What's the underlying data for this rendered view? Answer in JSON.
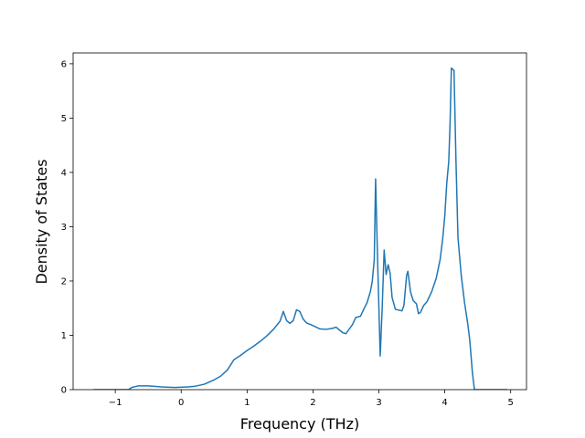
{
  "chart_data": {
    "type": "line",
    "xlabel": "Frequency (THz)",
    "ylabel": "Density of States",
    "xlim": [
      -1.64,
      5.24
    ],
    "ylim": [
      0,
      6.2
    ],
    "xticks": [
      {
        "value": -1,
        "label": "−1"
      },
      0,
      1,
      2,
      3,
      4,
      5
    ],
    "yticks": [
      0,
      1,
      2,
      3,
      4,
      5,
      6
    ],
    "series": [
      {
        "color": "#1f77b4",
        "x": [
          -1.33,
          -0.8,
          -0.75,
          -0.65,
          -0.5,
          -0.3,
          -0.1,
          0.1,
          0.2,
          0.35,
          0.5,
          0.6,
          0.7,
          0.8,
          0.9,
          1.0,
          1.1,
          1.2,
          1.3,
          1.4,
          1.5,
          1.55,
          1.6,
          1.65,
          1.7,
          1.75,
          1.8,
          1.85,
          1.9,
          2.0,
          2.1,
          2.2,
          2.3,
          2.35,
          2.45,
          2.5,
          2.6,
          2.65,
          2.72,
          2.77,
          2.82,
          2.87,
          2.9,
          2.93,
          2.95,
          2.98,
          3.02,
          3.05,
          3.08,
          3.11,
          3.14,
          3.17,
          3.2,
          3.25,
          3.35,
          3.38,
          3.42,
          3.44,
          3.48,
          3.52,
          3.57,
          3.6,
          3.63,
          3.68,
          3.73,
          3.8,
          3.87,
          3.93,
          3.97,
          4.0,
          4.03,
          4.06,
          4.08,
          4.1,
          4.14,
          4.17,
          4.2,
          4.25,
          4.3,
          4.35,
          4.38,
          4.42,
          4.45,
          4.95
        ],
        "values": [
          0,
          0,
          0.04,
          0.07,
          0.07,
          0.05,
          0.04,
          0.05,
          0.06,
          0.1,
          0.18,
          0.25,
          0.36,
          0.55,
          0.63,
          0.72,
          0.8,
          0.89,
          0.99,
          1.11,
          1.26,
          1.44,
          1.27,
          1.22,
          1.27,
          1.47,
          1.44,
          1.3,
          1.23,
          1.18,
          1.12,
          1.11,
          1.13,
          1.15,
          1.05,
          1.03,
          1.2,
          1.33,
          1.35,
          1.48,
          1.6,
          1.8,
          2.0,
          2.4,
          3.88,
          2.4,
          0.62,
          1.5,
          2.57,
          2.12,
          2.3,
          2.15,
          1.7,
          1.48,
          1.45,
          1.55,
          2.1,
          2.18,
          1.8,
          1.64,
          1.58,
          1.4,
          1.42,
          1.55,
          1.62,
          1.8,
          2.05,
          2.4,
          2.8,
          3.2,
          3.8,
          4.2,
          4.9,
          5.92,
          5.88,
          4.2,
          2.8,
          2.1,
          1.6,
          1.2,
          0.9,
          0.3,
          0,
          0
        ]
      }
    ]
  }
}
